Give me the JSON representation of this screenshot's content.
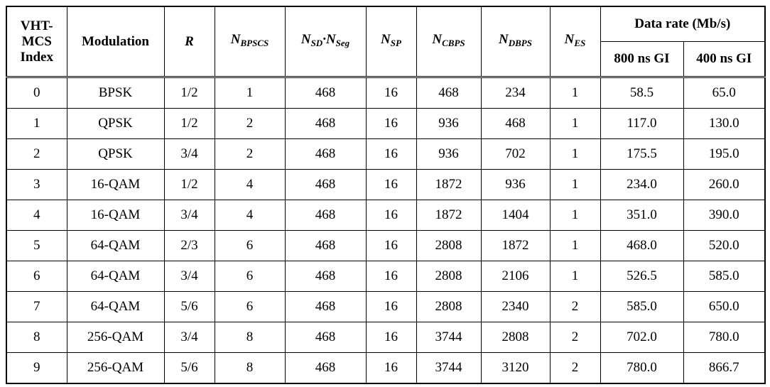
{
  "table": {
    "headers": {
      "index": "VHT-MCS Index",
      "modulation": "Modulation",
      "r": "R",
      "nbpscs_main": "N",
      "nbpscs_sub": "BPSCS",
      "nsd_main": "N",
      "nsd_sub": "SD",
      "nsd_dot": "·",
      "nseg_main": "N",
      "nseg_sub": "Seg",
      "nsp_main": "N",
      "nsp_sub": "SP",
      "ncbps_main": "N",
      "ncbps_sub": "CBPS",
      "ndbps_main": "N",
      "ndbps_sub": "DBPS",
      "nes_main": "N",
      "nes_sub": "ES",
      "data_rate": "Data rate (Mb/s)",
      "gi800": "800 ns GI",
      "gi400": "400 ns GI"
    },
    "rows": [
      [
        "0",
        "BPSK",
        "1/2",
        "1",
        "468",
        "16",
        "468",
        "234",
        "1",
        "58.5",
        "65.0"
      ],
      [
        "1",
        "QPSK",
        "1/2",
        "2",
        "468",
        "16",
        "936",
        "468",
        "1",
        "117.0",
        "130.0"
      ],
      [
        "2",
        "QPSK",
        "3/4",
        "2",
        "468",
        "16",
        "936",
        "702",
        "1",
        "175.5",
        "195.0"
      ],
      [
        "3",
        "16-QAM",
        "1/2",
        "4",
        "468",
        "16",
        "1872",
        "936",
        "1",
        "234.0",
        "260.0"
      ],
      [
        "4",
        "16-QAM",
        "3/4",
        "4",
        "468",
        "16",
        "1872",
        "1404",
        "1",
        "351.0",
        "390.0"
      ],
      [
        "5",
        "64-QAM",
        "2/3",
        "6",
        "468",
        "16",
        "2808",
        "1872",
        "1",
        "468.0",
        "520.0"
      ],
      [
        "6",
        "64-QAM",
        "3/4",
        "6",
        "468",
        "16",
        "2808",
        "2106",
        "1",
        "526.5",
        "585.0"
      ],
      [
        "7",
        "64-QAM",
        "5/6",
        "6",
        "468",
        "16",
        "2808",
        "2340",
        "2",
        "585.0",
        "650.0"
      ],
      [
        "8",
        "256-QAM",
        "3/4",
        "8",
        "468",
        "16",
        "3744",
        "2808",
        "2",
        "702.0",
        "780.0"
      ],
      [
        "9",
        "256-QAM",
        "5/6",
        "8",
        "468",
        "16",
        "3744",
        "3120",
        "2",
        "780.0",
        "866.7"
      ]
    ]
  }
}
